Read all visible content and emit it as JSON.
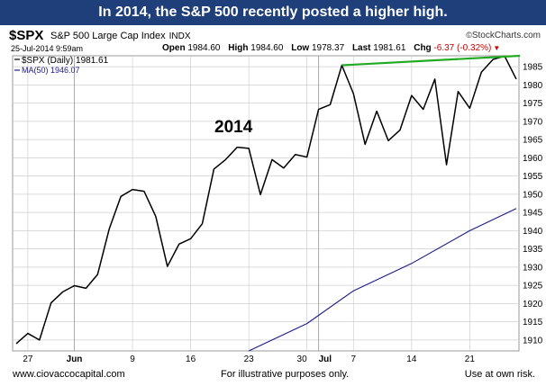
{
  "banner": "In 2014, the S&P 500 recently posted a higher high.",
  "header": {
    "symbol": "$SPX",
    "name": "S&P 500 Large Cap Index",
    "exchange": "INDX",
    "date": "25-Jul-2014 9:59am",
    "logo": "StockCharts.com",
    "logo_mark": "©",
    "quote": {
      "open_label": "Open",
      "open_value": "1984.60",
      "high_label": "High",
      "high_value": "1984.60",
      "low_label": "Low",
      "low_value": "1978.37",
      "last_label": "Last",
      "last_value": "1981.61",
      "chg_label": "Chg",
      "chg_value": "-6.37 (-0.32%)"
    }
  },
  "legend": {
    "price": "$SPX (Daily) 1981.61",
    "ma": "MA(50) 1946.07"
  },
  "annotation": "2014",
  "footer": {
    "left": "www.ciovaccocapital.com",
    "middle": "For illustrative purposes only.",
    "right": "Use at own risk."
  },
  "colors": {
    "banner_bg": "#1e3f79",
    "price": "#000000",
    "ma": "#1b1a8a",
    "trendline": "#22aa22",
    "grid": "#cfcfcf",
    "chg": "#cc0000"
  },
  "chart_data": {
    "type": "line",
    "ylim": [
      1907,
      1988
    ],
    "y_ticks": [
      1910,
      1915,
      1920,
      1925,
      1930,
      1935,
      1940,
      1945,
      1950,
      1955,
      1960,
      1965,
      1970,
      1975,
      1980,
      1985
    ],
    "x_ticks": [
      {
        "label": "27",
        "date": "2014-05-27"
      },
      {
        "label": "Jun",
        "date": "2014-06-02"
      },
      {
        "label": "9",
        "date": "2014-06-09"
      },
      {
        "label": "16",
        "date": "2014-06-16"
      },
      {
        "label": "23",
        "date": "2014-06-23"
      },
      {
        "label": "30",
        "date": "2014-06-30"
      },
      {
        "label": "Jul",
        "date": "2014-07-01"
      },
      {
        "label": "7",
        "date": "2014-07-07"
      },
      {
        "label": "14",
        "date": "2014-07-14"
      },
      {
        "label": "21",
        "date": "2014-07-21"
      }
    ],
    "series": [
      {
        "name": "$SPX (Daily) 1981.61",
        "color": "#000000",
        "dates": [
          "2014-05-23",
          "2014-05-27",
          "2014-05-28",
          "2014-05-29",
          "2014-05-30",
          "2014-06-02",
          "2014-06-03",
          "2014-06-04",
          "2014-06-05",
          "2014-06-06",
          "2014-06-09",
          "2014-06-10",
          "2014-06-11",
          "2014-06-12",
          "2014-06-13",
          "2014-06-16",
          "2014-06-17",
          "2014-06-18",
          "2014-06-19",
          "2014-06-20",
          "2014-06-23",
          "2014-06-24",
          "2014-06-25",
          "2014-06-26",
          "2014-06-27",
          "2014-06-30",
          "2014-07-01",
          "2014-07-02",
          "2014-07-03",
          "2014-07-07",
          "2014-07-08",
          "2014-07-09",
          "2014-07-10",
          "2014-07-11",
          "2014-07-14",
          "2014-07-15",
          "2014-07-16",
          "2014-07-17",
          "2014-07-18",
          "2014-07-21",
          "2014-07-22",
          "2014-07-23",
          "2014-07-24",
          "2014-07-25"
        ],
        "values": [
          1909.0,
          1911.8,
          1910.0,
          1920.2,
          1923.2,
          1924.9,
          1924.2,
          1928.0,
          1940.5,
          1949.4,
          1951.3,
          1950.8,
          1943.9,
          1930.2,
          1936.3,
          1937.8,
          1941.9,
          1956.9,
          1959.5,
          1962.9,
          1962.6,
          1949.9,
          1959.5,
          1957.2,
          1960.9,
          1960.2,
          1973.3,
          1974.6,
          1985.4,
          1977.6,
          1963.7,
          1972.8,
          1964.7,
          1967.6,
          1977.1,
          1973.3,
          1981.6,
          1958.1,
          1978.2,
          1973.6,
          1983.5,
          1987.0,
          1987.9,
          1981.6
        ]
      },
      {
        "name": "MA(50) 1946.07",
        "color": "#1b1a8a",
        "dates": [
          "2014-06-23",
          "2014-06-30",
          "2014-07-07",
          "2014-07-14",
          "2014-07-21",
          "2014-07-25"
        ],
        "values": [
          1907.0,
          1914.5,
          1923.5,
          1931.0,
          1940.0,
          1946.07
        ]
      }
    ],
    "annotations": [
      {
        "type": "trendline",
        "color": "#22aa22",
        "from": {
          "date": "2014-07-03",
          "value": 1985.4
        },
        "to": {
          "date": "2014-07-25",
          "value": 1988.0
        }
      },
      {
        "type": "text",
        "text": "2014"
      }
    ],
    "grid": true,
    "legend_position": "top-left"
  }
}
